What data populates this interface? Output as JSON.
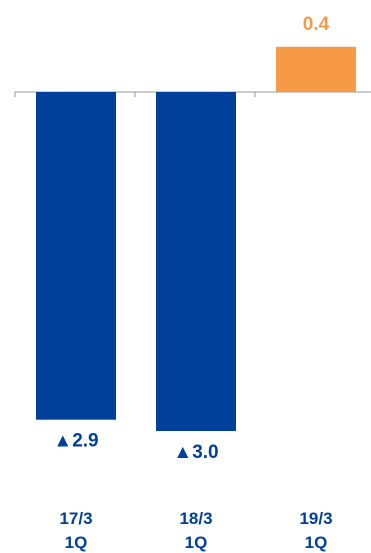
{
  "chart_data": {
    "type": "bar",
    "categories": [
      [
        "17/3",
        "1Q"
      ],
      [
        "18/3",
        "1Q"
      ],
      [
        "19/3",
        "1Q"
      ]
    ],
    "values": [
      -2.9,
      -3.0,
      0.4
    ],
    "data_labels": [
      "▲2.9",
      "▲3.0",
      "0.4"
    ],
    "title": "",
    "xlabel": "",
    "ylabel": "",
    "ylim": [
      -3.0,
      0.4
    ],
    "grid": false,
    "colors": {
      "negative": "#003f9a",
      "positive": "#f79a46",
      "negative_label": "#003f9a",
      "positive_label": "#f79a46",
      "tick_label": "#003f9a",
      "axis": "#9a9a9a"
    }
  }
}
